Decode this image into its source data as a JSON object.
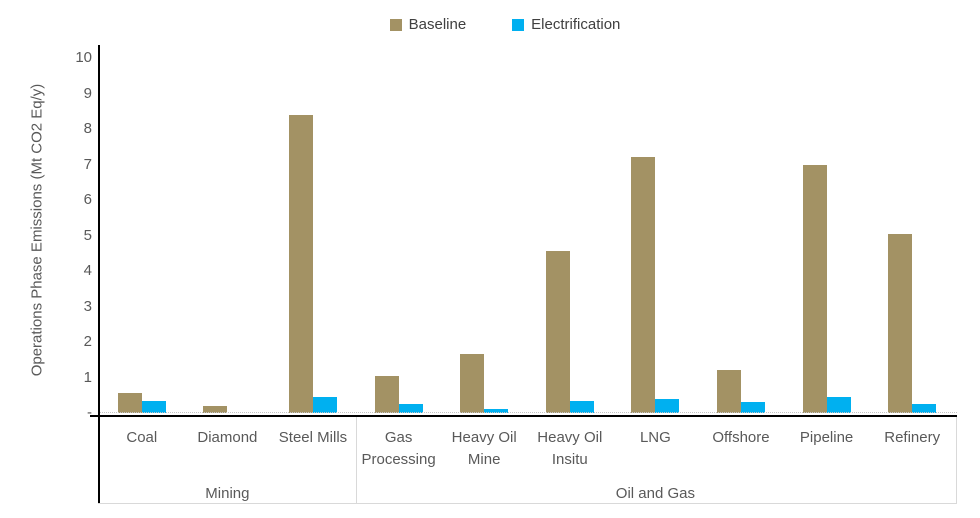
{
  "chart_data": {
    "type": "bar",
    "title": "",
    "xlabel": "",
    "ylabel": "Operations Phase Emissions (Mt CO2 Eq/y)",
    "ylim": [
      0,
      10
    ],
    "ytick_step": 1,
    "ytick_labels": [
      "10",
      "9",
      "8",
      "7",
      "6",
      "5",
      "4",
      "3",
      "2",
      "1",
      "-"
    ],
    "grid": false,
    "legend_position": "top-center",
    "categories": [
      "Coal",
      "Diamond",
      "Steel Mills",
      "Gas Processing",
      "Heavy Oil Mine",
      "Heavy Oil Insitu",
      "LNG",
      "Offshore",
      "Pipeline",
      "Refinery"
    ],
    "category_groups": [
      {
        "label": "Mining",
        "span": [
          0,
          2
        ]
      },
      {
        "label": "Oil and Gas",
        "span": [
          3,
          9
        ]
      }
    ],
    "series": [
      {
        "name": "Baseline",
        "color": "#A39264",
        "values": [
          0.55,
          0.2,
          8.4,
          1.05,
          1.65,
          4.55,
          7.2,
          1.2,
          7.0,
          5.05
        ]
      },
      {
        "name": "Electrification",
        "color": "#00B0F0",
        "values": [
          0.35,
          0,
          0.45,
          0.25,
          0.1,
          0.35,
          0.4,
          0.3,
          0.45,
          0.25
        ]
      }
    ]
  },
  "style_colors": {
    "axis_line": "#000000",
    "separator_line": "#D9D9D9",
    "axis_text": "#595959",
    "legend_text": "#404040"
  }
}
